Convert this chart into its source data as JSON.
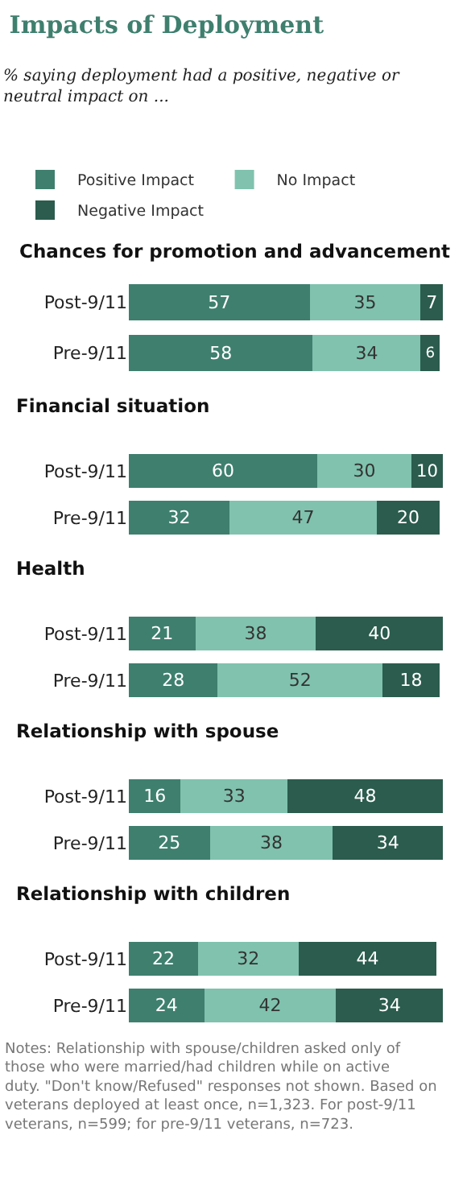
{
  "chart_data": [
    {
      "type": "bar",
      "orientation": "horizontal",
      "stacked": true,
      "data_labels": true,
      "legend": "top",
      "title": "Impacts of Deployment",
      "subtitle": "% saying deployment had a positive, negative or neutral impact on ...",
      "annotations": [
        "Chances for promotion and advancement"
      ],
      "categories": [
        "Post-9/11",
        "Pre-9/11"
      ],
      "series": [
        {
          "name": "Positive Impact",
          "color": "#3f7f6e",
          "values": [
            57,
            58
          ]
        },
        {
          "name": "No Impact",
          "color": "#80c2ae",
          "values": [
            35,
            34
          ]
        },
        {
          "name": "Negative Impact",
          "color": "#2b5c4d",
          "values": [
            7,
            6
          ]
        }
      ]
    },
    {
      "type": "bar",
      "orientation": "horizontal",
      "stacked": true,
      "data_labels": true,
      "title": "Financial situation",
      "categories": [
        "Post-9/11",
        "Pre-9/11"
      ],
      "series": [
        {
          "color": "#3f7f6e",
          "values": [
            60,
            32
          ]
        },
        {
          "color": "#80c2ae",
          "values": [
            30,
            47
          ]
        },
        {
          "color": "#2b5c4d",
          "values": [
            10,
            20
          ]
        }
      ]
    },
    {
      "type": "bar",
      "orientation": "horizontal",
      "stacked": true,
      "data_labels": true,
      "title": "Health",
      "categories": [
        "Post-9/11",
        "Pre-9/11"
      ],
      "series": [
        {
          "color": "#3f7f6e",
          "values": [
            21,
            28
          ]
        },
        {
          "color": "#80c2ae",
          "values": [
            38,
            52
          ]
        },
        {
          "color": "#2b5c4d",
          "values": [
            40,
            18
          ]
        }
      ]
    },
    {
      "type": "bar",
      "orientation": "horizontal",
      "stacked": true,
      "data_labels": true,
      "title": "Relationship with spouse",
      "categories": [
        "Post-9/11",
        "Pre-9/11"
      ],
      "series": [
        {
          "color": "#3f7f6e",
          "values": [
            16,
            25
          ]
        },
        {
          "color": "#80c2ae",
          "values": [
            33,
            38
          ]
        },
        {
          "color": "#2b5c4d",
          "values": [
            48,
            34
          ]
        }
      ]
    },
    {
      "type": "bar",
      "orientation": "horizontal",
      "stacked": true,
      "data_labels": true,
      "title": "Relationship with children",
      "annotations": [
        "Notes: Relationship with spouse/children asked only of those who were married/had children while on active duty. \"Don't know/Refused\" responses not shown. Based on veterans deployed at least once, n=1,323. For post-9/11 veterans, n=599; for pre-9/11 veterans, n=723."
      ],
      "categories": [
        "Post-9/11",
        "Pre-9/11"
      ],
      "series": [
        {
          "color": "#3f7f6e",
          "values": [
            22,
            24
          ]
        },
        {
          "color": "#80c2ae",
          "values": [
            32,
            42
          ]
        },
        {
          "color": "#2b5c4d",
          "values": [
            44,
            34
          ]
        }
      ]
    }
  ]
}
